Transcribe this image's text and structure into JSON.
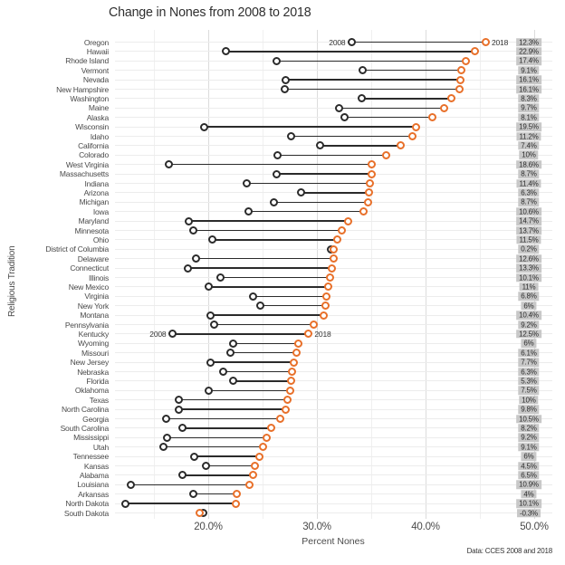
{
  "title": "Change in Nones from 2008 to 2018",
  "x_axis": {
    "label": "Percent Nones",
    "ticks": [
      {
        "value": 20,
        "label": "20.0%"
      },
      {
        "value": 30,
        "label": "30.0%"
      },
      {
        "value": 40,
        "label": "40.0%"
      },
      {
        "value": 50,
        "label": "50.0%"
      }
    ]
  },
  "y_axis": {
    "label": "Religious Tradition"
  },
  "caption": "Data: CCES 2008 and 2018",
  "colors": {
    "start": "#2B2B2B",
    "end": "#E8702A",
    "badge_bg": "#C8C8C8",
    "grid_major": "#DCDCDC",
    "grid_minor": "#F0F0F0",
    "row_grid": "#ECECEC"
  },
  "chart_data": {
    "type": "dumbbell",
    "xlabel": "Percent Nones",
    "ylabel": "Religious Tradition",
    "x_range_percent": [
      11.4,
      51.7
    ],
    "minor_gridlines": [
      15,
      25,
      35,
      45
    ],
    "series_labels": {
      "start": "2008",
      "end": "2018"
    },
    "annotated_rows": [
      0,
      31
    ],
    "rows": [
      {
        "state": "Oregon",
        "v2008": 33.2,
        "v2018": 45.5,
        "change": "12.3%"
      },
      {
        "state": "Hawaii",
        "v2008": 21.6,
        "v2018": 44.5,
        "change": "22.9%"
      },
      {
        "state": "Rhode Island",
        "v2008": 26.3,
        "v2018": 43.7,
        "change": "17.4%"
      },
      {
        "state": "Vermont",
        "v2008": 34.2,
        "v2018": 43.3,
        "change": "9.1%"
      },
      {
        "state": "Nevada",
        "v2008": 27.1,
        "v2018": 43.2,
        "change": "16.1%"
      },
      {
        "state": "New Hampshire",
        "v2008": 27.0,
        "v2018": 43.1,
        "change": "16.1%"
      },
      {
        "state": "Washington",
        "v2008": 34.1,
        "v2018": 42.4,
        "change": "8.3%"
      },
      {
        "state": "Maine",
        "v2008": 32.0,
        "v2018": 41.7,
        "change": "9.7%"
      },
      {
        "state": "Alaska",
        "v2008": 32.5,
        "v2018": 40.6,
        "change": "8.1%"
      },
      {
        "state": "Wisconsin",
        "v2008": 19.6,
        "v2018": 39.1,
        "change": "19.5%"
      },
      {
        "state": "Idaho",
        "v2008": 27.6,
        "v2018": 38.8,
        "change": "11.2%"
      },
      {
        "state": "California",
        "v2008": 30.3,
        "v2018": 37.7,
        "change": "7.4%"
      },
      {
        "state": "Colorado",
        "v2008": 26.4,
        "v2018": 36.4,
        "change": "10%"
      },
      {
        "state": "West Virginia",
        "v2008": 16.4,
        "v2018": 35.0,
        "change": "18.6%"
      },
      {
        "state": "Massachusetts",
        "v2008": 26.3,
        "v2018": 35.0,
        "change": "8.7%"
      },
      {
        "state": "Indiana",
        "v2008": 23.5,
        "v2018": 34.9,
        "change": "11.4%"
      },
      {
        "state": "Arizona",
        "v2008": 28.5,
        "v2018": 34.8,
        "change": "6.3%"
      },
      {
        "state": "Michigan",
        "v2008": 26.0,
        "v2018": 34.7,
        "change": "8.7%"
      },
      {
        "state": "Iowa",
        "v2008": 23.7,
        "v2018": 34.3,
        "change": "10.6%"
      },
      {
        "state": "Maryland",
        "v2008": 18.2,
        "v2018": 32.9,
        "change": "14.7%"
      },
      {
        "state": "Minnesota",
        "v2008": 18.6,
        "v2018": 32.3,
        "change": "13.7%"
      },
      {
        "state": "Ohio",
        "v2008": 20.4,
        "v2018": 31.9,
        "change": "11.5%"
      },
      {
        "state": "District of Columbia",
        "v2008": 31.3,
        "v2018": 31.5,
        "change": "0.2%"
      },
      {
        "state": "Delaware",
        "v2008": 18.9,
        "v2018": 31.5,
        "change": "12.6%"
      },
      {
        "state": "Connecticut",
        "v2008": 18.1,
        "v2018": 31.4,
        "change": "13.3%"
      },
      {
        "state": "Illinois",
        "v2008": 21.1,
        "v2018": 31.2,
        "change": "10.1%"
      },
      {
        "state": "New Mexico",
        "v2008": 20.0,
        "v2018": 31.0,
        "change": "11%"
      },
      {
        "state": "Virginia",
        "v2008": 24.1,
        "v2018": 30.9,
        "change": "6.8%"
      },
      {
        "state": "New York",
        "v2008": 24.8,
        "v2018": 30.8,
        "change": "6%"
      },
      {
        "state": "Montana",
        "v2008": 20.2,
        "v2018": 30.6,
        "change": "10.4%"
      },
      {
        "state": "Pennsylvania",
        "v2008": 20.5,
        "v2018": 29.7,
        "change": "9.2%"
      },
      {
        "state": "Kentucky",
        "v2008": 16.7,
        "v2018": 29.2,
        "change": "12.5%"
      },
      {
        "state": "Wyoming",
        "v2008": 22.3,
        "v2018": 28.3,
        "change": "6%"
      },
      {
        "state": "Missouri",
        "v2008": 22.0,
        "v2018": 28.1,
        "change": "6.1%"
      },
      {
        "state": "New Jersey",
        "v2008": 20.2,
        "v2018": 27.9,
        "change": "7.7%"
      },
      {
        "state": "Nebraska",
        "v2008": 21.4,
        "v2018": 27.7,
        "change": "6.3%"
      },
      {
        "state": "Florida",
        "v2008": 22.3,
        "v2018": 27.6,
        "change": "5.3%"
      },
      {
        "state": "Oklahoma",
        "v2008": 20.0,
        "v2018": 27.5,
        "change": "7.5%"
      },
      {
        "state": "Texas",
        "v2008": 17.3,
        "v2018": 27.3,
        "change": "10%"
      },
      {
        "state": "North Carolina",
        "v2008": 17.3,
        "v2018": 27.1,
        "change": "9.8%"
      },
      {
        "state": "Georgia",
        "v2008": 16.1,
        "v2018": 26.6,
        "change": "10.5%"
      },
      {
        "state": "South Carolina",
        "v2008": 17.6,
        "v2018": 25.8,
        "change": "8.2%"
      },
      {
        "state": "Mississippi",
        "v2008": 16.2,
        "v2018": 25.4,
        "change": "9.2%"
      },
      {
        "state": "Utah",
        "v2008": 15.9,
        "v2018": 25.0,
        "change": "9.1%"
      },
      {
        "state": "Tennessee",
        "v2008": 18.7,
        "v2018": 24.7,
        "change": "6%"
      },
      {
        "state": "Kansas",
        "v2008": 19.8,
        "v2018": 24.3,
        "change": "4.5%"
      },
      {
        "state": "Alabama",
        "v2008": 17.6,
        "v2018": 24.1,
        "change": "6.5%"
      },
      {
        "state": "Louisiana",
        "v2008": 12.9,
        "v2018": 23.8,
        "change": "10.9%"
      },
      {
        "state": "Arkansas",
        "v2008": 18.6,
        "v2018": 22.6,
        "change": "4%"
      },
      {
        "state": "North Dakota",
        "v2008": 12.4,
        "v2018": 22.5,
        "change": "10.1%"
      },
      {
        "state": "South Dakota",
        "v2008": 19.5,
        "v2018": 19.2,
        "change": "-0.3%"
      }
    ]
  }
}
